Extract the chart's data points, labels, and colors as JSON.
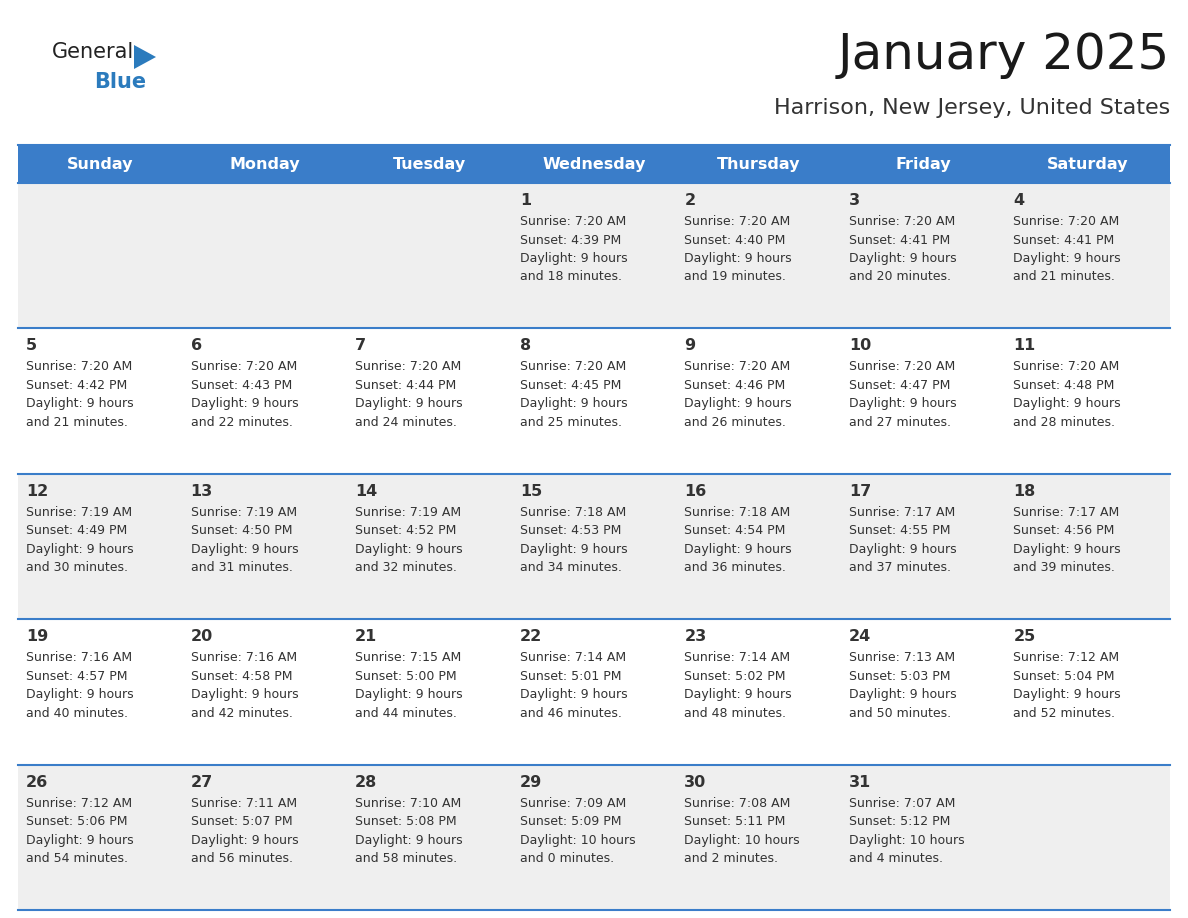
{
  "title": "January 2025",
  "subtitle": "Harrison, New Jersey, United States",
  "header_bg": "#3A7DC9",
  "header_text_color": "#FFFFFF",
  "days_of_week": [
    "Sunday",
    "Monday",
    "Tuesday",
    "Wednesday",
    "Thursday",
    "Friday",
    "Saturday"
  ],
  "row_bg_odd": "#EFEFEF",
  "row_bg_even": "#FFFFFF",
  "cell_text_color": "#333333",
  "day_num_color": "#333333",
  "grid_line_color": "#3A7DC9",
  "logo_color_general": "#222222",
  "logo_color_blue": "#2B7BBD",
  "logo_triangle_color": "#2B7BBD",
  "calendar_data": [
    [
      {
        "day": null,
        "info": null
      },
      {
        "day": null,
        "info": null
      },
      {
        "day": null,
        "info": null
      },
      {
        "day": 1,
        "info": "Sunrise: 7:20 AM\nSunset: 4:39 PM\nDaylight: 9 hours\nand 18 minutes."
      },
      {
        "day": 2,
        "info": "Sunrise: 7:20 AM\nSunset: 4:40 PM\nDaylight: 9 hours\nand 19 minutes."
      },
      {
        "day": 3,
        "info": "Sunrise: 7:20 AM\nSunset: 4:41 PM\nDaylight: 9 hours\nand 20 minutes."
      },
      {
        "day": 4,
        "info": "Sunrise: 7:20 AM\nSunset: 4:41 PM\nDaylight: 9 hours\nand 21 minutes."
      }
    ],
    [
      {
        "day": 5,
        "info": "Sunrise: 7:20 AM\nSunset: 4:42 PM\nDaylight: 9 hours\nand 21 minutes."
      },
      {
        "day": 6,
        "info": "Sunrise: 7:20 AM\nSunset: 4:43 PM\nDaylight: 9 hours\nand 22 minutes."
      },
      {
        "day": 7,
        "info": "Sunrise: 7:20 AM\nSunset: 4:44 PM\nDaylight: 9 hours\nand 24 minutes."
      },
      {
        "day": 8,
        "info": "Sunrise: 7:20 AM\nSunset: 4:45 PM\nDaylight: 9 hours\nand 25 minutes."
      },
      {
        "day": 9,
        "info": "Sunrise: 7:20 AM\nSunset: 4:46 PM\nDaylight: 9 hours\nand 26 minutes."
      },
      {
        "day": 10,
        "info": "Sunrise: 7:20 AM\nSunset: 4:47 PM\nDaylight: 9 hours\nand 27 minutes."
      },
      {
        "day": 11,
        "info": "Sunrise: 7:20 AM\nSunset: 4:48 PM\nDaylight: 9 hours\nand 28 minutes."
      }
    ],
    [
      {
        "day": 12,
        "info": "Sunrise: 7:19 AM\nSunset: 4:49 PM\nDaylight: 9 hours\nand 30 minutes."
      },
      {
        "day": 13,
        "info": "Sunrise: 7:19 AM\nSunset: 4:50 PM\nDaylight: 9 hours\nand 31 minutes."
      },
      {
        "day": 14,
        "info": "Sunrise: 7:19 AM\nSunset: 4:52 PM\nDaylight: 9 hours\nand 32 minutes."
      },
      {
        "day": 15,
        "info": "Sunrise: 7:18 AM\nSunset: 4:53 PM\nDaylight: 9 hours\nand 34 minutes."
      },
      {
        "day": 16,
        "info": "Sunrise: 7:18 AM\nSunset: 4:54 PM\nDaylight: 9 hours\nand 36 minutes."
      },
      {
        "day": 17,
        "info": "Sunrise: 7:17 AM\nSunset: 4:55 PM\nDaylight: 9 hours\nand 37 minutes."
      },
      {
        "day": 18,
        "info": "Sunrise: 7:17 AM\nSunset: 4:56 PM\nDaylight: 9 hours\nand 39 minutes."
      }
    ],
    [
      {
        "day": 19,
        "info": "Sunrise: 7:16 AM\nSunset: 4:57 PM\nDaylight: 9 hours\nand 40 minutes."
      },
      {
        "day": 20,
        "info": "Sunrise: 7:16 AM\nSunset: 4:58 PM\nDaylight: 9 hours\nand 42 minutes."
      },
      {
        "day": 21,
        "info": "Sunrise: 7:15 AM\nSunset: 5:00 PM\nDaylight: 9 hours\nand 44 minutes."
      },
      {
        "day": 22,
        "info": "Sunrise: 7:14 AM\nSunset: 5:01 PM\nDaylight: 9 hours\nand 46 minutes."
      },
      {
        "day": 23,
        "info": "Sunrise: 7:14 AM\nSunset: 5:02 PM\nDaylight: 9 hours\nand 48 minutes."
      },
      {
        "day": 24,
        "info": "Sunrise: 7:13 AM\nSunset: 5:03 PM\nDaylight: 9 hours\nand 50 minutes."
      },
      {
        "day": 25,
        "info": "Sunrise: 7:12 AM\nSunset: 5:04 PM\nDaylight: 9 hours\nand 52 minutes."
      }
    ],
    [
      {
        "day": 26,
        "info": "Sunrise: 7:12 AM\nSunset: 5:06 PM\nDaylight: 9 hours\nand 54 minutes."
      },
      {
        "day": 27,
        "info": "Sunrise: 7:11 AM\nSunset: 5:07 PM\nDaylight: 9 hours\nand 56 minutes."
      },
      {
        "day": 28,
        "info": "Sunrise: 7:10 AM\nSunset: 5:08 PM\nDaylight: 9 hours\nand 58 minutes."
      },
      {
        "day": 29,
        "info": "Sunrise: 7:09 AM\nSunset: 5:09 PM\nDaylight: 10 hours\nand 0 minutes."
      },
      {
        "day": 30,
        "info": "Sunrise: 7:08 AM\nSunset: 5:11 PM\nDaylight: 10 hours\nand 2 minutes."
      },
      {
        "day": 31,
        "info": "Sunrise: 7:07 AM\nSunset: 5:12 PM\nDaylight: 10 hours\nand 4 minutes."
      },
      {
        "day": null,
        "info": null
      }
    ]
  ]
}
